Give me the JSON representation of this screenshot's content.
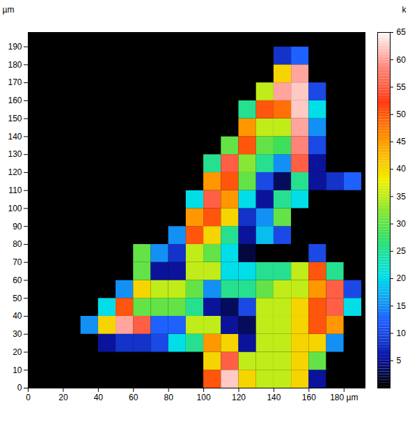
{
  "chart_data": {
    "type": "heatmap",
    "ylabel": "µm",
    "xlim": [
      0,
      192
    ],
    "ylim": [
      0,
      198
    ],
    "xticks": [
      0,
      20,
      40,
      60,
      80,
      100,
      120,
      140,
      160,
      {
        "value": 180,
        "label": "180 µm"
      }
    ],
    "yticks": [
      0,
      10,
      20,
      30,
      40,
      50,
      60,
      70,
      80,
      90,
      100,
      110,
      120,
      130,
      140,
      150,
      160,
      170,
      180,
      190
    ],
    "x_bins": [
      0,
      10,
      20,
      30,
      40,
      50,
      60,
      70,
      80,
      90,
      100,
      110,
      120,
      130,
      140,
      150,
      160,
      170,
      180,
      190
    ],
    "y_bins": [
      0,
      10,
      20,
      30,
      40,
      50,
      60,
      70,
      80,
      90,
      100,
      110,
      120,
      130,
      140,
      150,
      160,
      170,
      180,
      190,
      200
    ],
    "cells": [
      [
        0,
        0,
        0,
        0,
        0,
        0,
        0,
        0,
        0,
        0,
        50,
        62,
        40,
        35,
        35,
        40,
        5,
        0,
        0
      ],
      [
        0,
        0,
        0,
        0,
        0,
        0,
        0,
        0,
        0,
        0,
        40,
        55,
        35,
        35,
        35,
        40,
        30,
        0,
        0
      ],
      [
        0,
        0,
        0,
        0,
        5,
        8,
        8,
        10,
        20,
        25,
        45,
        40,
        5,
        35,
        35,
        40,
        40,
        15,
        0
      ],
      [
        0,
        0,
        0,
        15,
        40,
        60,
        55,
        12,
        12,
        35,
        35,
        5,
        3,
        35,
        35,
        40,
        50,
        45,
        0
      ],
      [
        0,
        0,
        0,
        0,
        20,
        50,
        30,
        30,
        30,
        25,
        5,
        3,
        10,
        35,
        35,
        40,
        50,
        55,
        20
      ],
      [
        0,
        0,
        0,
        0,
        0,
        15,
        40,
        35,
        35,
        30,
        15,
        25,
        25,
        30,
        35,
        35,
        45,
        55,
        10
      ],
      [
        0,
        0,
        0,
        0,
        0,
        0,
        30,
        5,
        5,
        35,
        35,
        20,
        20,
        25,
        25,
        35,
        50,
        25,
        0
      ],
      [
        0,
        0,
        0,
        0,
        0,
        0,
        30,
        15,
        8,
        35,
        30,
        20,
        2,
        0,
        0,
        0,
        10,
        0,
        0
      ],
      [
        0,
        0,
        0,
        0,
        0,
        0,
        0,
        0,
        15,
        50,
        40,
        25,
        5,
        18,
        10,
        0,
        0,
        0,
        0
      ],
      [
        0,
        0,
        0,
        0,
        0,
        0,
        0,
        0,
        0,
        45,
        50,
        40,
        8,
        15,
        30,
        0,
        0,
        0,
        0
      ],
      [
        0,
        0,
        0,
        0,
        0,
        0,
        0,
        0,
        0,
        20,
        55,
        45,
        20,
        5,
        25,
        20,
        0,
        0,
        0
      ],
      [
        0,
        0,
        0,
        0,
        0,
        0,
        0,
        0,
        0,
        0,
        45,
        50,
        30,
        10,
        3,
        25,
        5,
        8,
        12
      ],
      [
        0,
        0,
        0,
        0,
        0,
        0,
        0,
        0,
        0,
        0,
        25,
        55,
        32,
        25,
        15,
        55,
        5,
        0,
        0
      ],
      [
        0,
        0,
        0,
        0,
        0,
        0,
        0,
        0,
        0,
        0,
        0,
        30,
        50,
        30,
        28,
        58,
        10,
        0,
        0
      ],
      [
        0,
        0,
        0,
        0,
        0,
        0,
        0,
        0,
        0,
        0,
        0,
        0,
        45,
        35,
        35,
        60,
        15,
        0,
        0
      ],
      [
        0,
        0,
        0,
        0,
        0,
        0,
        0,
        0,
        0,
        0,
        0,
        0,
        25,
        50,
        48,
        62,
        20,
        0,
        0
      ],
      [
        0,
        0,
        0,
        0,
        0,
        0,
        0,
        0,
        0,
        0,
        0,
        0,
        0,
        35,
        60,
        62,
        10,
        0,
        0
      ],
      [
        0,
        0,
        0,
        0,
        0,
        0,
        0,
        0,
        0,
        0,
        0,
        0,
        0,
        0,
        40,
        60,
        0,
        0,
        0
      ],
      [
        0,
        0,
        0,
        0,
        0,
        0,
        0,
        0,
        0,
        0,
        0,
        0,
        0,
        0,
        8,
        12,
        0,
        0,
        0
      ],
      [
        0,
        0,
        0,
        0,
        0,
        0,
        0,
        0,
        0,
        0,
        0,
        0,
        0,
        0,
        0,
        0,
        0,
        0,
        0
      ]
    ],
    "colorbar": {
      "label": "k",
      "range": [
        0,
        65
      ],
      "ticks": [
        5,
        10,
        15,
        20,
        25,
        30,
        35,
        40,
        45,
        50,
        55,
        60,
        65
      ]
    }
  }
}
